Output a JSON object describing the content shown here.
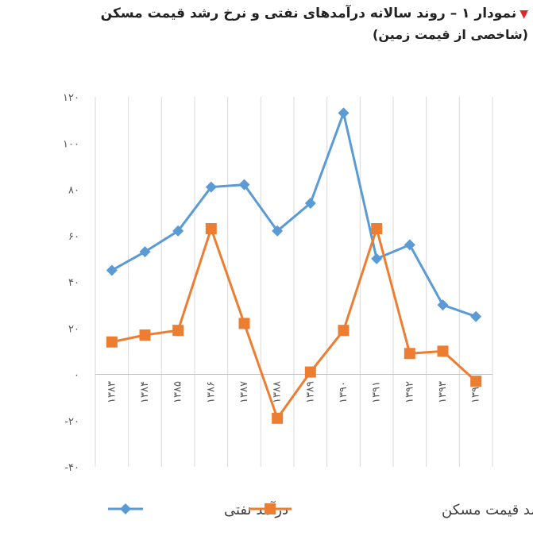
{
  "title": {
    "marker": "▼",
    "text": "نمودار ۱ – روند سالانه درآمدهای نفتی و نرخ رشد قیمت مسکن",
    "subtitle": "(شاخصی از قیمت زمین)"
  },
  "chart_data": {
    "type": "line",
    "categories": [
      "۱۳۸۳",
      "۱۳۸۴",
      "۱۳۸۵",
      "۱۳۸۶",
      "۱۳۸۷",
      "۱۳۸۸",
      "۱۳۸۹",
      "۱۳۹۰",
      "۱۳۹۱",
      "۱۳۹۲",
      "۱۳۹۳",
      "۱۳۹۴"
    ],
    "series": [
      {
        "name": "درآمد نفتی",
        "color": "#5b9bd5",
        "marker": "diamond",
        "values": [
          45,
          53,
          62,
          81,
          82,
          62,
          74,
          113,
          50,
          56,
          30,
          25
        ]
      },
      {
        "name": "نرخ رشد قیمت مسکن",
        "color": "#ed7d31",
        "marker": "square",
        "values": [
          14,
          17,
          19,
          63,
          22,
          -19,
          1,
          19,
          63,
          9,
          10,
          -3
        ]
      }
    ],
    "ylim": [
      -40,
      120
    ],
    "yticks": [
      120,
      100,
      80,
      60,
      40,
      20,
      0,
      -20,
      -40
    ],
    "ytick_labels": [
      "۱۲۰",
      "۱۰۰",
      "۸۰",
      "۶۰",
      "۴۰",
      "۲۰",
      "۰",
      "-۲۰",
      "-۴۰"
    ],
    "grid": "vertical",
    "legend": "bottom",
    "xlabel": "",
    "ylabel": ""
  }
}
